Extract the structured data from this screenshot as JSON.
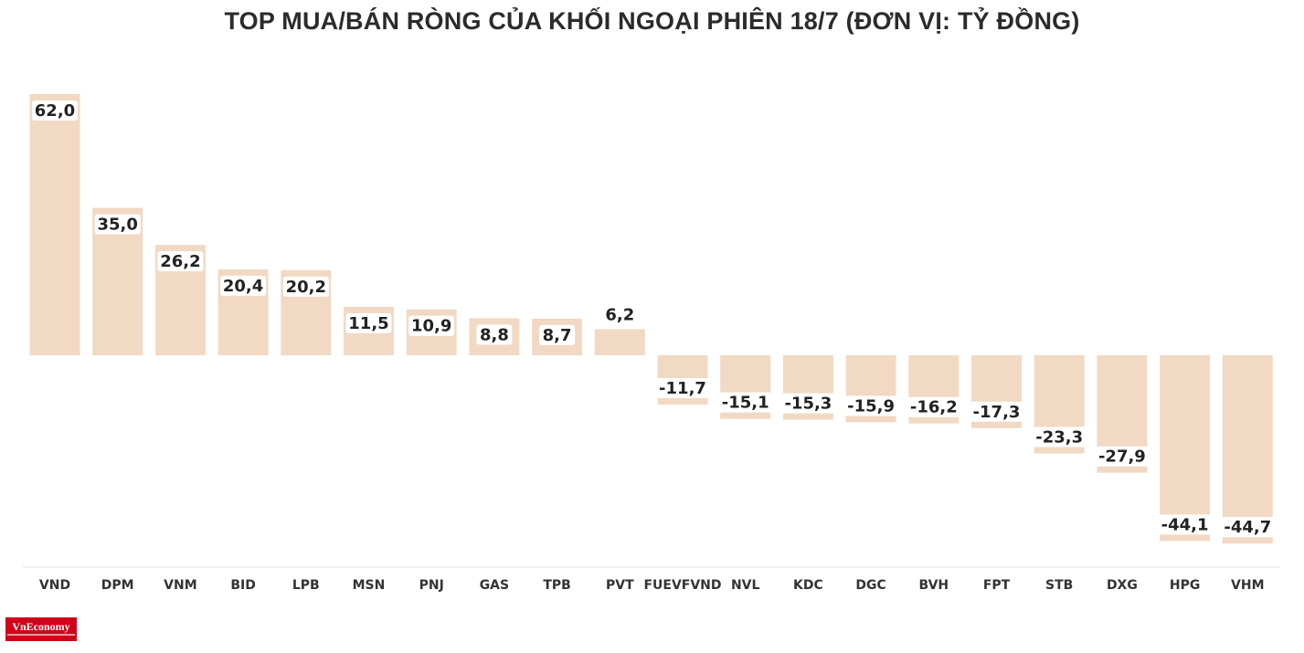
{
  "title": "TOP MUA/BÁN RÒNG CỦA KHỐI NGOẠI PHIÊN 18/7 (ĐƠN VỊ: TỶ ĐỒNG)",
  "logo": {
    "text": "VnEconomy"
  },
  "colors": {
    "bar": "#f2d9c4",
    "text": "#222222",
    "logo_bg": "#d0021b"
  },
  "chart_data": {
    "type": "bar",
    "title": "TOP MUA/BÁN RÒNG CỦA KHỐI NGOẠI PHIÊN 18/7 (ĐƠN VỊ: TỶ ĐỒNG)",
    "categories": [
      "VND",
      "DPM",
      "VNM",
      "BID",
      "LPB",
      "MSN",
      "PNJ",
      "GAS",
      "TPB",
      "PVT",
      "FUEVFVND",
      "NVL",
      "KDC",
      "DGC",
      "BVH",
      "FPT",
      "STB",
      "DXG",
      "HPG",
      "VHM"
    ],
    "values": [
      62.0,
      35.0,
      26.2,
      20.4,
      20.2,
      11.5,
      10.9,
      8.8,
      8.7,
      6.2,
      -11.7,
      -15.1,
      -15.3,
      -15.9,
      -16.2,
      -17.3,
      -23.3,
      -27.9,
      -44.1,
      -44.7
    ],
    "labels": [
      "62,0",
      "35,0",
      "26,2",
      "20,4",
      "20,2",
      "11,5",
      "10,9",
      "8,8",
      "8,7",
      "6,2",
      "-11,7",
      "-15,1",
      "-15,3",
      "-15,9",
      "-16,2",
      "-17,3",
      "-23,3",
      "-27,9",
      "-44,1",
      "-44,7"
    ],
    "ylim": [
      -44.7,
      62.0
    ],
    "xlabel": "",
    "ylabel": "",
    "grid": false,
    "legend": "none"
  }
}
